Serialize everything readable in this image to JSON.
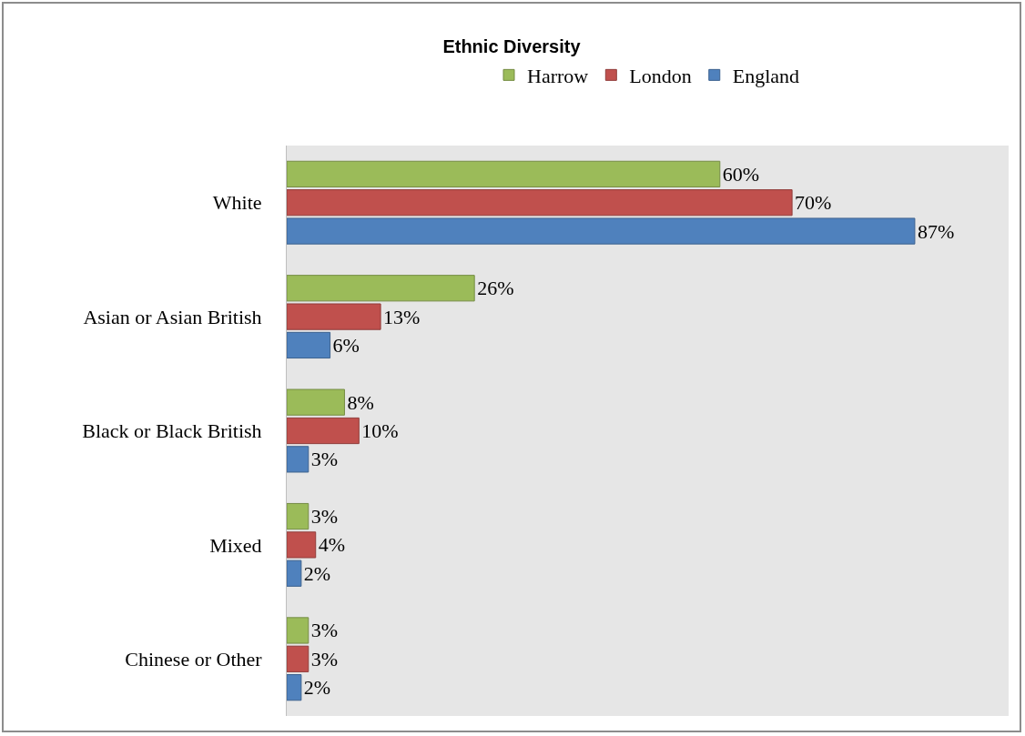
{
  "chart_data": {
    "type": "bar",
    "orientation": "horizontal",
    "title": "Ethnic Diversity",
    "categories": [
      "White",
      "Asian or Asian British",
      "Black or Black British",
      "Mixed",
      "Chinese or Other"
    ],
    "series": [
      {
        "name": "Harrow",
        "color": "#9bbb59",
        "values": [
          60,
          26,
          8,
          3,
          3
        ],
        "value_labels": [
          "60%",
          "26%",
          "8%",
          "3%",
          "3%"
        ]
      },
      {
        "name": "London",
        "color": "#c0504d",
        "values": [
          70,
          13,
          10,
          4,
          3
        ],
        "value_labels": [
          "70%",
          "13%",
          "10%",
          "4%",
          "3%"
        ]
      },
      {
        "name": "England",
        "color": "#4f81bd",
        "values": [
          87,
          6,
          3,
          2,
          2
        ],
        "value_labels": [
          "87%",
          "6%",
          "3%",
          "2%",
          "2%"
        ]
      }
    ],
    "xlim": [
      0,
      100
    ],
    "tick_labels": "y",
    "grid": false,
    "legend": "top"
  }
}
